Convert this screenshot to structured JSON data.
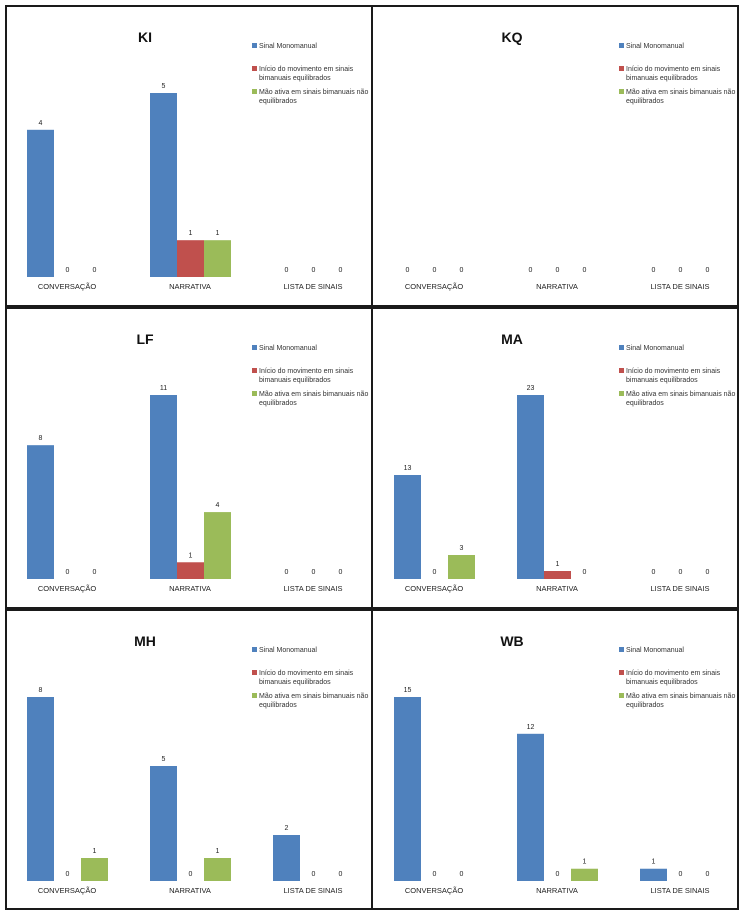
{
  "colors": {
    "Sinal  Monomanual": "#4f81bd",
    "Início do movimento em sinais bimanuais equilibrados": "#c0504d",
    "Mão ativa em sinais bimanuais não equilibrados": "#9bbb59"
  },
  "legend": [
    [
      "Sinal  Monomanual"
    ],
    [
      "Início do movimento em sinais",
      "bimanuais equilibrados"
    ],
    [
      "Mão ativa em sinais bimanuais não",
      "equilibrados"
    ]
  ],
  "chart_data": [
    {
      "type": "bar",
      "title": "KI",
      "categories": [
        "CONVERSAÇÃO",
        "NARRATIVA",
        "LISTA DE SINAIS"
      ],
      "series": [
        {
          "name": "Sinal  Monomanual",
          "values": [
            4,
            5,
            0
          ]
        },
        {
          "name": "Início do movimento em sinais bimanuais equilibrados",
          "values": [
            0,
            1,
            0
          ]
        },
        {
          "name": "Mão ativa em sinais bimanuais não equilibrados",
          "values": [
            0,
            1,
            0
          ]
        }
      ],
      "data_labels": true,
      "legend_position": "top-right",
      "grid": false
    },
    {
      "type": "bar",
      "title": "KQ",
      "categories": [
        "CONVERSAÇÃO",
        "NARRATIVA",
        "LISTA DE SINAIS"
      ],
      "series": [
        {
          "name": "Sinal  Monomanual",
          "values": [
            0,
            0,
            0
          ]
        },
        {
          "name": "Início do movimento em sinais bimanuais equilibrados",
          "values": [
            0,
            0,
            0
          ]
        },
        {
          "name": "Mão ativa em sinais bimanuais não equilibrados",
          "values": [
            0,
            0,
            0
          ]
        }
      ],
      "data_labels": true,
      "legend_position": "top-right",
      "grid": false
    },
    {
      "type": "bar",
      "title": "LF",
      "categories": [
        "CONVERSAÇÃO",
        "NARRATIVA",
        "LISTA DE SINAIS"
      ],
      "series": [
        {
          "name": "Sinal  Monomanual",
          "values": [
            8,
            11,
            0
          ]
        },
        {
          "name": "Início do movimento em sinais bimanuais equilibrados",
          "values": [
            0,
            1,
            0
          ]
        },
        {
          "name": "Mão ativa em sinais bimanuais não equilibrados",
          "values": [
            0,
            4,
            0
          ]
        }
      ],
      "data_labels": true,
      "legend_position": "top-right",
      "grid": false
    },
    {
      "type": "bar",
      "title": "MA",
      "categories": [
        "CONVERSAÇÃO",
        "NARRATIVA",
        "LISTA DE SINAIS"
      ],
      "series": [
        {
          "name": "Sinal  Monomanual",
          "values": [
            13,
            23,
            0
          ]
        },
        {
          "name": "Início do movimento em sinais bimanuais equilibrados",
          "values": [
            0,
            1,
            0
          ]
        },
        {
          "name": "Mão ativa em sinais bimanuais não equilibrados",
          "values": [
            3,
            0,
            0
          ]
        }
      ],
      "data_labels": true,
      "legend_position": "top-right",
      "grid": false
    },
    {
      "type": "bar",
      "title": "MH",
      "categories": [
        "CONVERSAÇÃO",
        "NARRATIVA",
        "LISTA DE SINAIS"
      ],
      "series": [
        {
          "name": "Sinal  Monomanual",
          "values": [
            8,
            5,
            2
          ]
        },
        {
          "name": "Início do movimento em sinais bimanuais equilibrados",
          "values": [
            0,
            0,
            0
          ]
        },
        {
          "name": "Mão ativa em sinais bimanuais não equilibrados",
          "values": [
            1,
            1,
            0
          ]
        }
      ],
      "data_labels": true,
      "legend_position": "top-right",
      "grid": false
    },
    {
      "type": "bar",
      "title": "WB",
      "categories": [
        "CONVERSAÇÃO",
        "NARRATIVA",
        "LISTA DE SINAIS"
      ],
      "series": [
        {
          "name": "Sinal  Monomanual",
          "values": [
            15,
            12,
            1
          ]
        },
        {
          "name": "Início do movimento em sinais bimanuais equilibrados",
          "values": [
            0,
            0,
            0
          ]
        },
        {
          "name": "Mão ativa em sinais bimanuais não equilibrados",
          "values": [
            0,
            1,
            0
          ]
        }
      ],
      "data_labels": true,
      "legend_position": "top-right",
      "grid": false
    }
  ]
}
